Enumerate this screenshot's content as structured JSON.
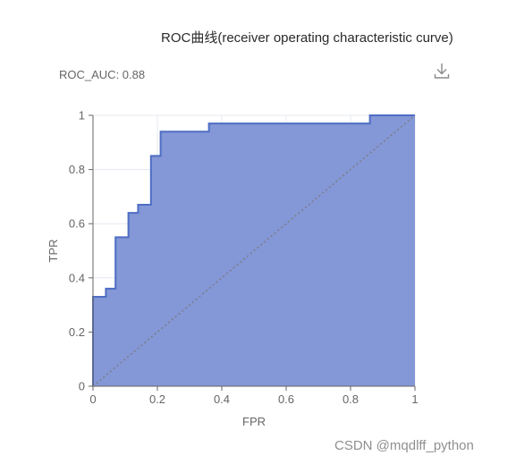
{
  "title": "ROC曲线(receiver operating characteristic curve)",
  "auc_text": "ROC_AUC: 0.88",
  "watermark": "CSDN @mqdlff_python",
  "toolbar": {
    "download_icon": "download-icon"
  },
  "colors": {
    "area_fill": "#8497d6",
    "line": "#4e6ec4",
    "diagonal": "#7a7a7a",
    "grid": "#e5e8f2",
    "axis": "#666666"
  },
  "chart_data": {
    "type": "area",
    "xlabel": "FPR",
    "ylabel": "TPR",
    "xlim": [
      0,
      1
    ],
    "ylim": [
      0,
      1
    ],
    "grid": true,
    "x_ticks": [
      "0",
      "0.2",
      "0.4",
      "0.6",
      "0.8",
      "1"
    ],
    "y_ticks": [
      "0",
      "0.2",
      "0.4",
      "0.6",
      "0.8",
      "1"
    ],
    "series": [
      {
        "step": true,
        "x": [
          0,
          0,
          0.04,
          0.04,
          0.07,
          0.07,
          0.11,
          0.11,
          0.14,
          0.14,
          0.18,
          0.18,
          0.21,
          0.21,
          0.36,
          0.36,
          0.86,
          0.86,
          1
        ],
        "y": [
          0,
          0.33,
          0.33,
          0.36,
          0.36,
          0.55,
          0.55,
          0.64,
          0.64,
          0.67,
          0.67,
          0.85,
          0.85,
          0.94,
          0.94,
          0.97,
          0.97,
          1,
          1
        ]
      },
      {
        "style": "dotted",
        "x": [
          0,
          1
        ],
        "y": [
          0,
          1
        ]
      }
    ]
  }
}
